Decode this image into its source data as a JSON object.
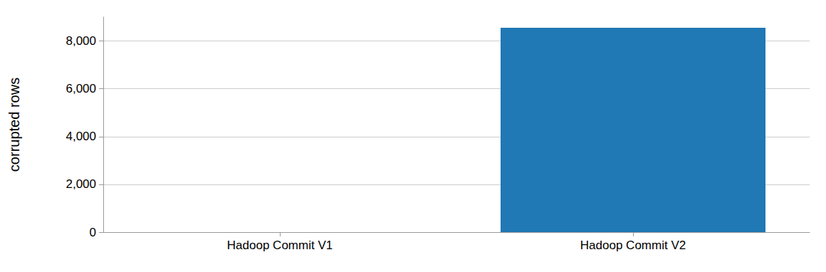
{
  "chart_data": {
    "type": "bar",
    "y_label": "corrupted rows",
    "categories": [
      "Hadoop Commit V1",
      "Hadoop Commit V2"
    ],
    "values": [
      0,
      8550
    ],
    "color": "#2078b4",
    "ylim": [
      0,
      9000
    ],
    "yticks": [
      0,
      {
        "value": 2000,
        "label": "2,000"
      },
      {
        "value": 4000,
        "label": "4,000"
      },
      {
        "value": 6000,
        "label": "6,000"
      },
      {
        "value": 8000,
        "label": "8,000"
      }
    ],
    "grid": true
  }
}
